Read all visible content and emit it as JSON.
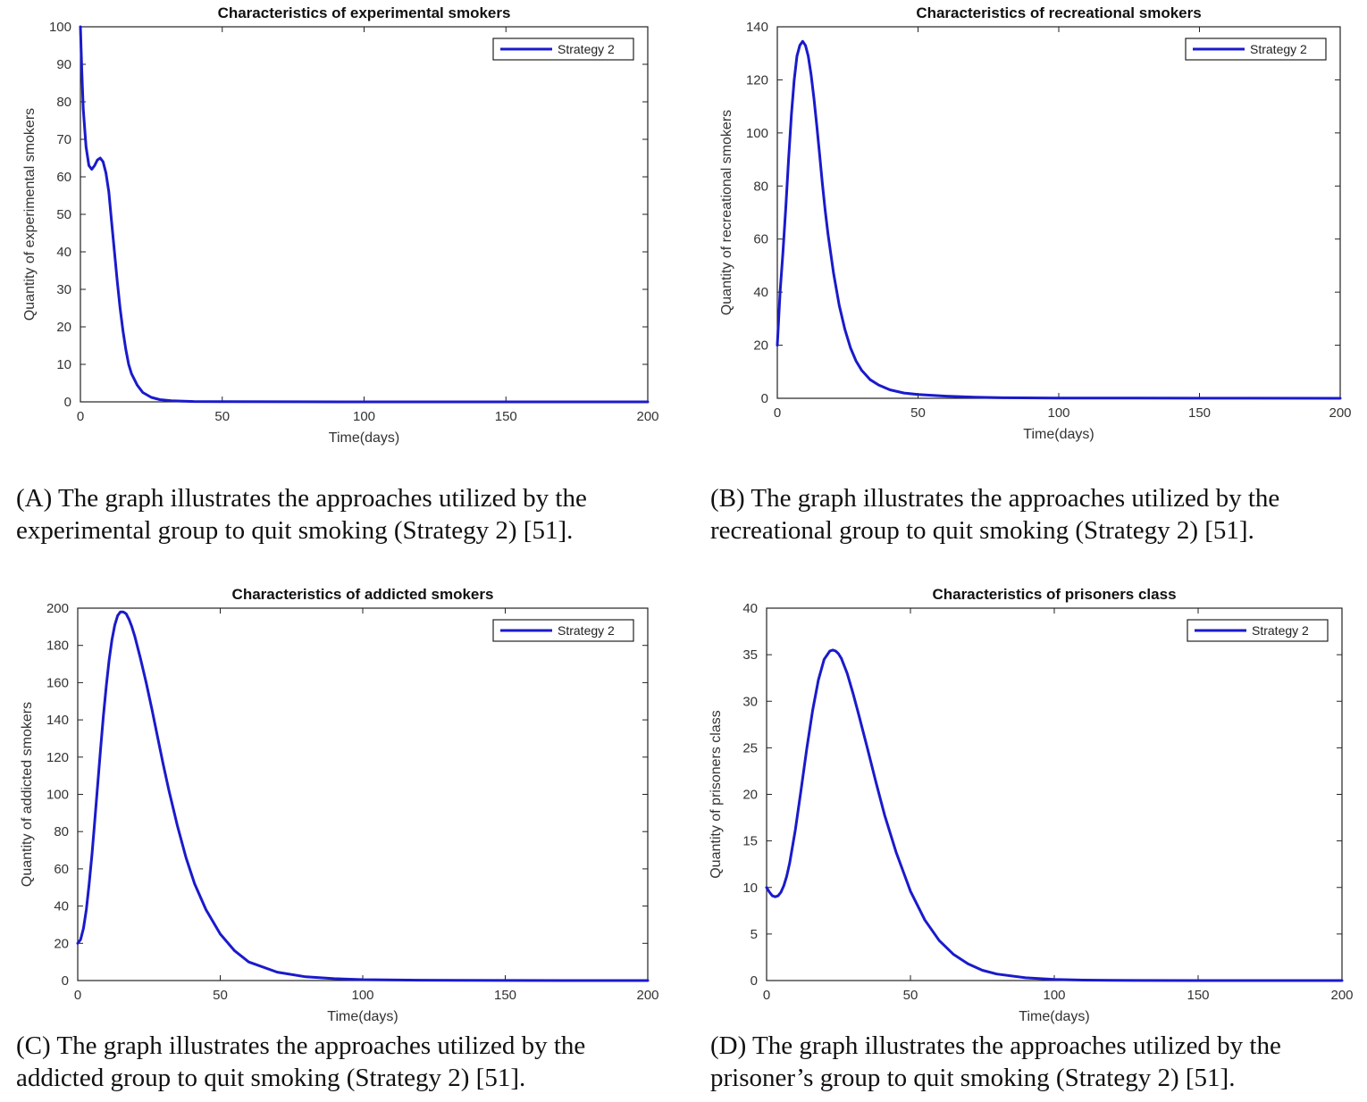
{
  "chart_data": [
    {
      "type": "line",
      "title": "Characteristics of experimental smokers",
      "xlabel": "Time(days)",
      "ylabel": "Quantity of experimental smokers",
      "xlim": [
        0,
        200
      ],
      "ylim": [
        0,
        100
      ],
      "xticks": [
        0,
        50,
        100,
        150,
        200
      ],
      "yticks": [
        0,
        10,
        20,
        30,
        40,
        50,
        60,
        70,
        80,
        90,
        100
      ],
      "legend": "top-right",
      "series": [
        {
          "name": "Strategy 2",
          "color": "#1a1acc",
          "x": [
            0,
            0.5,
            1,
            2,
            3,
            4,
            5,
            6,
            7,
            8,
            9,
            10,
            11,
            12,
            13,
            14,
            15,
            16,
            17,
            18,
            20,
            22,
            25,
            28,
            32,
            40,
            50,
            75,
            100,
            150,
            200
          ],
          "y": [
            100,
            88,
            78,
            68,
            63,
            62,
            63,
            64.5,
            65,
            64,
            61,
            56,
            48,
            40,
            32,
            25,
            19,
            14,
            10,
            7.5,
            4.5,
            2.5,
            1.2,
            0.6,
            0.3,
            0.1,
            0.05,
            0.02,
            0.01,
            0,
            0
          ]
        }
      ],
      "caption": "(A) The graph illustrates the approaches utilized by the\nexperimental group to quit smoking (Strategy 2) [51]."
    },
    {
      "type": "line",
      "title": "Characteristics of recreational smokers",
      "xlabel": "Time(days)",
      "ylabel": "Quantity of recreational smokers",
      "xlim": [
        0,
        200
      ],
      "ylim": [
        0,
        140
      ],
      "xticks": [
        0,
        50,
        100,
        150,
        200
      ],
      "yticks": [
        0,
        20,
        40,
        60,
        80,
        100,
        120,
        140
      ],
      "legend": "top-right",
      "series": [
        {
          "name": "Strategy 2",
          "color": "#1a1acc",
          "x": [
            0,
            1,
            2,
            3,
            4,
            5,
            6,
            7,
            8,
            9,
            10,
            11,
            12,
            13,
            14,
            15,
            16,
            17,
            18,
            20,
            22,
            24,
            26,
            28,
            30,
            33,
            36,
            40,
            45,
            50,
            60,
            70,
            80,
            100,
            150,
            200
          ],
          "y": [
            20,
            40,
            55,
            72,
            90,
            107,
            120,
            129,
            133,
            134.5,
            133,
            129,
            122,
            113,
            103,
            92,
            81,
            71,
            62,
            47,
            35,
            26,
            19,
            14,
            10.5,
            7,
            5,
            3.2,
            2,
            1.4,
            0.8,
            0.4,
            0.2,
            0.1,
            0.05,
            0
          ]
        }
      ],
      "caption": "(B) The graph illustrates the approaches utilized by the\nrecreational group to quit smoking (Strategy 2) [51]."
    },
    {
      "type": "line",
      "title": "Characteristics of addicted smokers",
      "xlabel": "Time(days)",
      "ylabel": "Quantity of addicted smokers",
      "xlim": [
        0,
        200
      ],
      "ylim": [
        0,
        200
      ],
      "xticks": [
        0,
        50,
        100,
        150,
        200
      ],
      "yticks": [
        0,
        20,
        40,
        60,
        80,
        100,
        120,
        140,
        160,
        180,
        200
      ],
      "legend": "top-right",
      "series": [
        {
          "name": "Strategy 2",
          "color": "#1a1acc",
          "x": [
            0,
            1,
            2,
            3,
            4,
            5,
            6,
            7,
            8,
            9,
            10,
            11,
            12,
            13,
            14,
            15,
            16,
            17,
            18,
            19,
            20,
            22,
            24,
            26,
            28,
            30,
            32,
            35,
            38,
            41,
            45,
            50,
            55,
            60,
            70,
            80,
            90,
            100,
            120,
            150,
            200
          ],
          "y": [
            20,
            22,
            28,
            38,
            52,
            68,
            86,
            105,
            124,
            142,
            158,
            172,
            183,
            191,
            196,
            198,
            198,
            197,
            194,
            190,
            185,
            173,
            160,
            146,
            131,
            116,
            102,
            83,
            66,
            52,
            38,
            25,
            16,
            10,
            4.5,
            2,
            1,
            0.5,
            0.2,
            0.05,
            0
          ]
        }
      ],
      "caption": "(C) The graph illustrates the approaches utilized by the\naddicted group to quit smoking (Strategy 2) [51]."
    },
    {
      "type": "line",
      "title": "Characteristics of prisoners class",
      "xlabel": "Time(days)",
      "ylabel": "Quantity of prisoners class",
      "xlim": [
        0,
        200
      ],
      "ylim": [
        0,
        40
      ],
      "xticks": [
        0,
        50,
        100,
        150,
        200
      ],
      "yticks": [
        0,
        5,
        10,
        15,
        20,
        25,
        30,
        35,
        40
      ],
      "legend": "top-right",
      "series": [
        {
          "name": "Strategy 2",
          "color": "#1a1acc",
          "x": [
            0,
            1,
            2,
            3,
            4,
            5,
            6,
            7,
            8,
            10,
            12,
            14,
            16,
            18,
            20,
            22,
            23,
            24,
            25,
            26,
            28,
            30,
            32,
            35,
            38,
            41,
            45,
            50,
            55,
            60,
            65,
            70,
            75,
            80,
            90,
            100,
            110,
            120,
            150,
            200
          ],
          "y": [
            10,
            9.5,
            9.1,
            9.0,
            9.1,
            9.5,
            10.2,
            11.2,
            12.6,
            16.2,
            20.5,
            25,
            29,
            32.3,
            34.5,
            35.4,
            35.5,
            35.4,
            35.1,
            34.6,
            33,
            30.9,
            28.6,
            25,
            21.3,
            17.8,
            13.8,
            9.6,
            6.5,
            4.3,
            2.8,
            1.8,
            1.1,
            0.7,
            0.3,
            0.12,
            0.05,
            0.02,
            0,
            0
          ]
        }
      ],
      "caption": "(D) The graph illustrates the approaches utilized by the\nprisoner’s group to quit smoking (Strategy 2) [51]."
    }
  ]
}
